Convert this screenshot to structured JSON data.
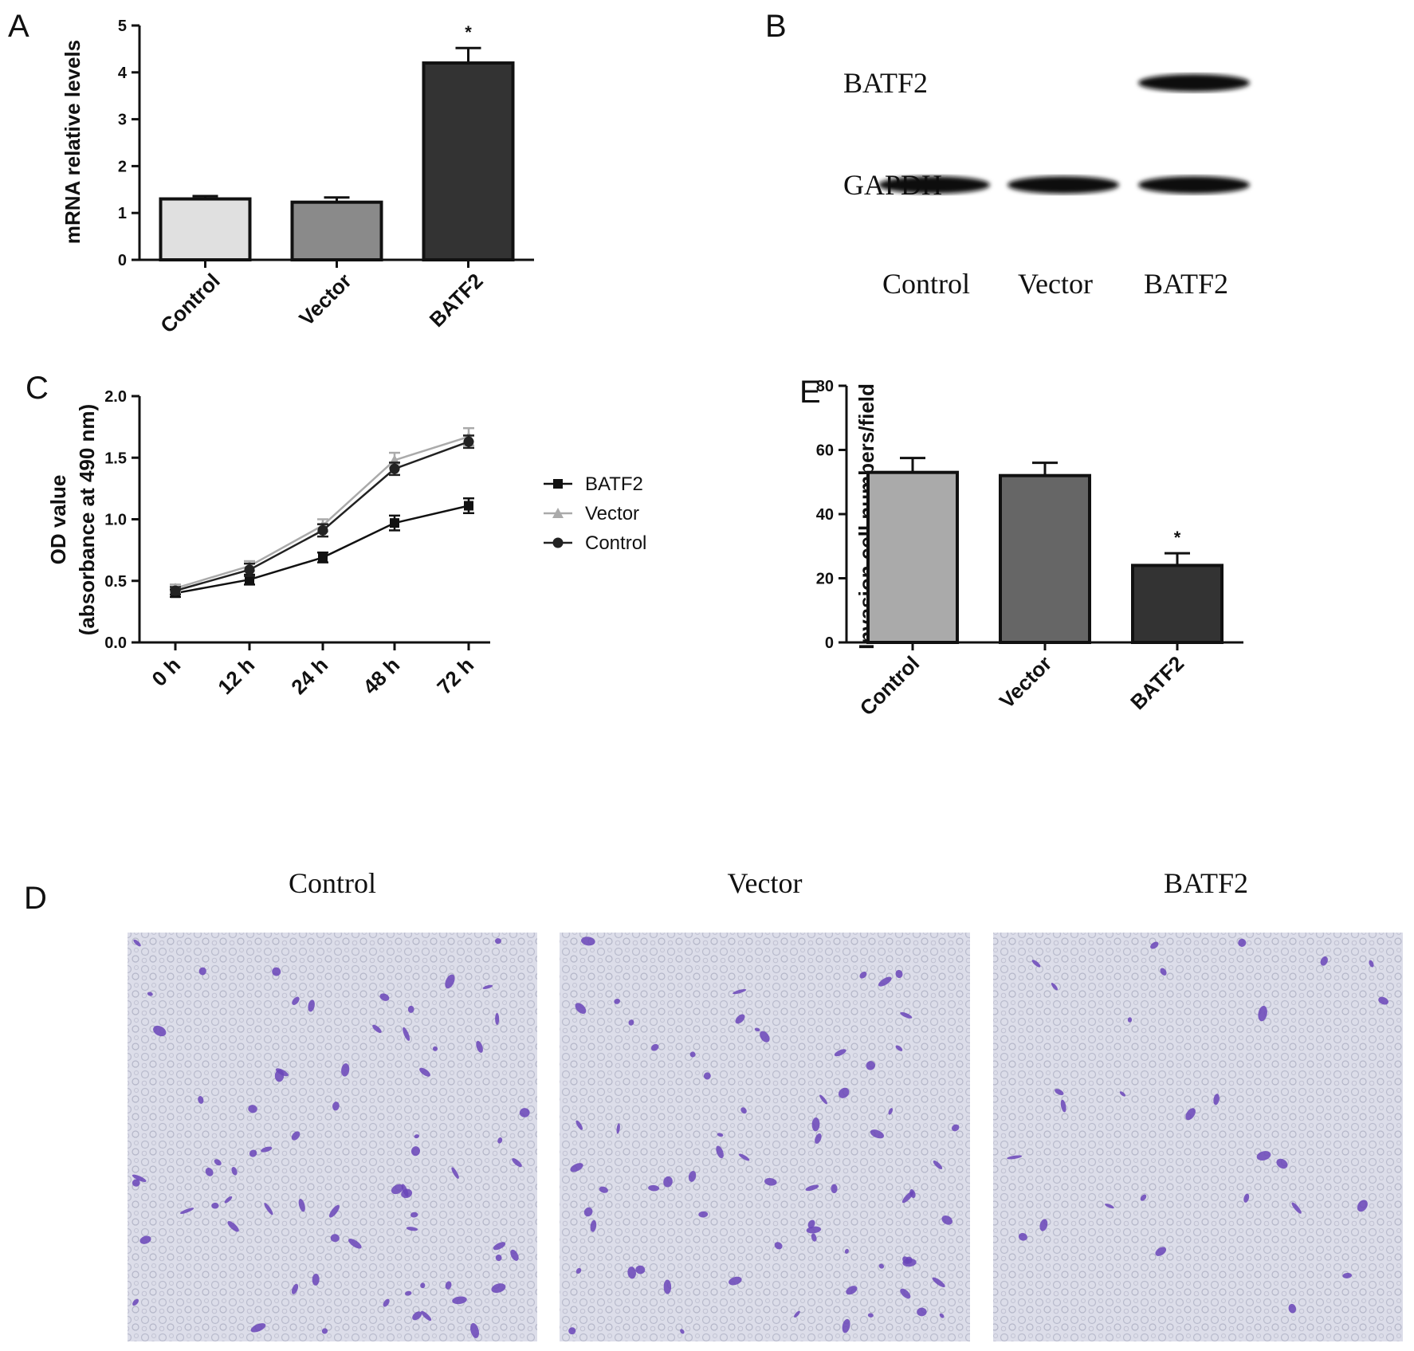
{
  "panels": {
    "A": {
      "letter": "A",
      "chart_data": {
        "type": "bar",
        "categories": [
          "Control",
          "Vector",
          "BATF2"
        ],
        "values": [
          1.3,
          1.23,
          4.2
        ],
        "errors": [
          0.06,
          0.1,
          0.32
        ],
        "significance": [
          "",
          "",
          "*"
        ],
        "ylabel": "mRNA relative levels",
        "ylim": [
          0,
          5
        ],
        "yticks": [
          0,
          1,
          2,
          3,
          4,
          5
        ],
        "colors": [
          "#e0e0e0",
          "#8a8a8a",
          "#333333"
        ]
      }
    },
    "B": {
      "letter": "B",
      "bands": [
        "BATF2",
        "GAPDH"
      ],
      "lanes": [
        "Control",
        "Vector",
        "BATF2"
      ],
      "presence": {
        "BATF2": [
          0,
          0,
          1
        ],
        "GAPDH": [
          1,
          1,
          1
        ]
      }
    },
    "C": {
      "letter": "C",
      "chart_data": {
        "type": "line",
        "categories": [
          "0 h",
          "12 h",
          "24 h",
          "48 h",
          "72 h"
        ],
        "series": [
          {
            "name": "BATF2",
            "values": [
              0.4,
              0.51,
              0.69,
              0.97,
              1.11
            ],
            "errors": [
              0.03,
              0.04,
              0.04,
              0.06,
              0.06
            ],
            "marker": "square",
            "color": "#111111"
          },
          {
            "name": "Vector",
            "values": [
              0.44,
              0.62,
              0.95,
              1.48,
              1.67
            ],
            "errors": [
              0.03,
              0.04,
              0.05,
              0.06,
              0.07
            ],
            "marker": "triangle",
            "color": "#aaaaaa"
          },
          {
            "name": "Control",
            "values": [
              0.42,
              0.59,
              0.91,
              1.41,
              1.63
            ],
            "errors": [
              0.03,
              0.05,
              0.05,
              0.05,
              0.05
            ],
            "marker": "circle",
            "color": "#222222"
          }
        ],
        "ylabel_line1": "OD value",
        "ylabel_line2": "(absorbance at 490 nm)",
        "ylim": [
          0,
          2
        ],
        "yticks": [
          "0.0",
          "0.5",
          "1.0",
          "1.5",
          "2.0"
        ],
        "legend_position": "right"
      }
    },
    "E": {
      "letter": "E",
      "chart_data": {
        "type": "bar",
        "categories": [
          "Control",
          "Vector",
          "BATF2"
        ],
        "values": [
          53,
          52,
          24
        ],
        "errors": [
          4.5,
          4,
          3.8
        ],
        "significance": [
          "",
          "",
          "*"
        ],
        "ylabel": "Invasion cell numbers/field",
        "ylim": [
          0,
          80
        ],
        "yticks": [
          0,
          20,
          40,
          60,
          80
        ],
        "colors": [
          "#aaaaaa",
          "#666666",
          "#333333"
        ]
      }
    },
    "D": {
      "letter": "D",
      "images": [
        {
          "title": "Control",
          "stained_density": "high"
        },
        {
          "title": "Vector",
          "stained_density": "high"
        },
        {
          "title": "BATF2",
          "stained_density": "low"
        }
      ]
    }
  }
}
